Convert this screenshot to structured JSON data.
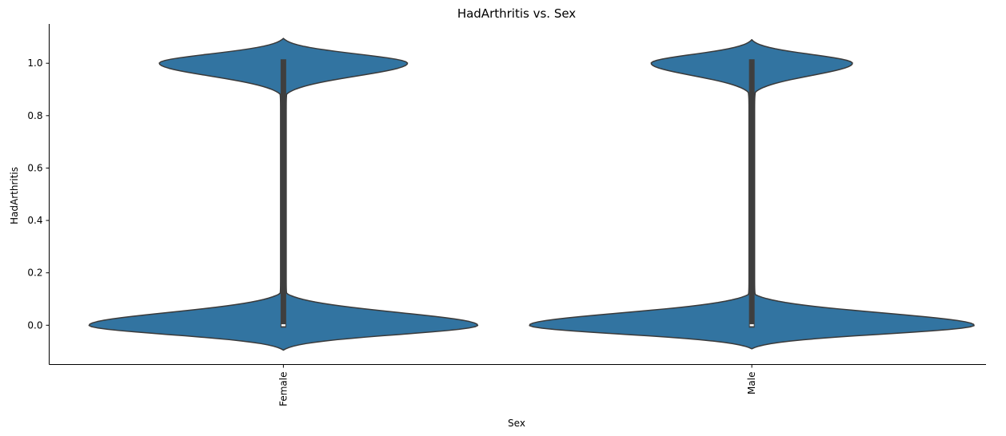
{
  "chart_data": {
    "type": "violin",
    "title": "HadArthritis vs. Sex",
    "xlabel": "Sex",
    "ylabel": "HadArthritis",
    "categories": [
      "Female",
      "Male"
    ],
    "ylim": [
      -0.15,
      1.15
    ],
    "yticks": [
      0.0,
      0.2,
      0.4,
      0.6,
      0.8,
      1.0
    ],
    "ytick_labels": [
      "0.0",
      "0.2",
      "0.4",
      "0.6",
      "0.8",
      "1.0"
    ],
    "grid": false,
    "colors": {
      "fill": "#3274a1",
      "edge": "#3a3a3a",
      "box": "#3f3f3f",
      "median": "#ffffff"
    },
    "violins": [
      {
        "category": "Female",
        "min": 0.0,
        "q1": 0.0,
        "median": 0.0,
        "q3": 1.0,
        "max": 1.0,
        "upper_lobe": {
          "center": 1.0,
          "top": 1.095,
          "bottom": 0.87,
          "max_half_width": 0.53
        },
        "lower_lobe": {
          "center": 0.0,
          "top": 0.13,
          "bottom": -0.095,
          "max_half_width": 0.83
        }
      },
      {
        "category": "Male",
        "min": 0.0,
        "q1": 0.0,
        "median": 0.0,
        "q3": 1.0,
        "max": 1.0,
        "upper_lobe": {
          "center": 1.0,
          "top": 1.09,
          "bottom": 0.875,
          "max_half_width": 0.43
        },
        "lower_lobe": {
          "center": 0.0,
          "top": 0.125,
          "bottom": -0.09,
          "max_half_width": 0.95
        }
      }
    ]
  }
}
